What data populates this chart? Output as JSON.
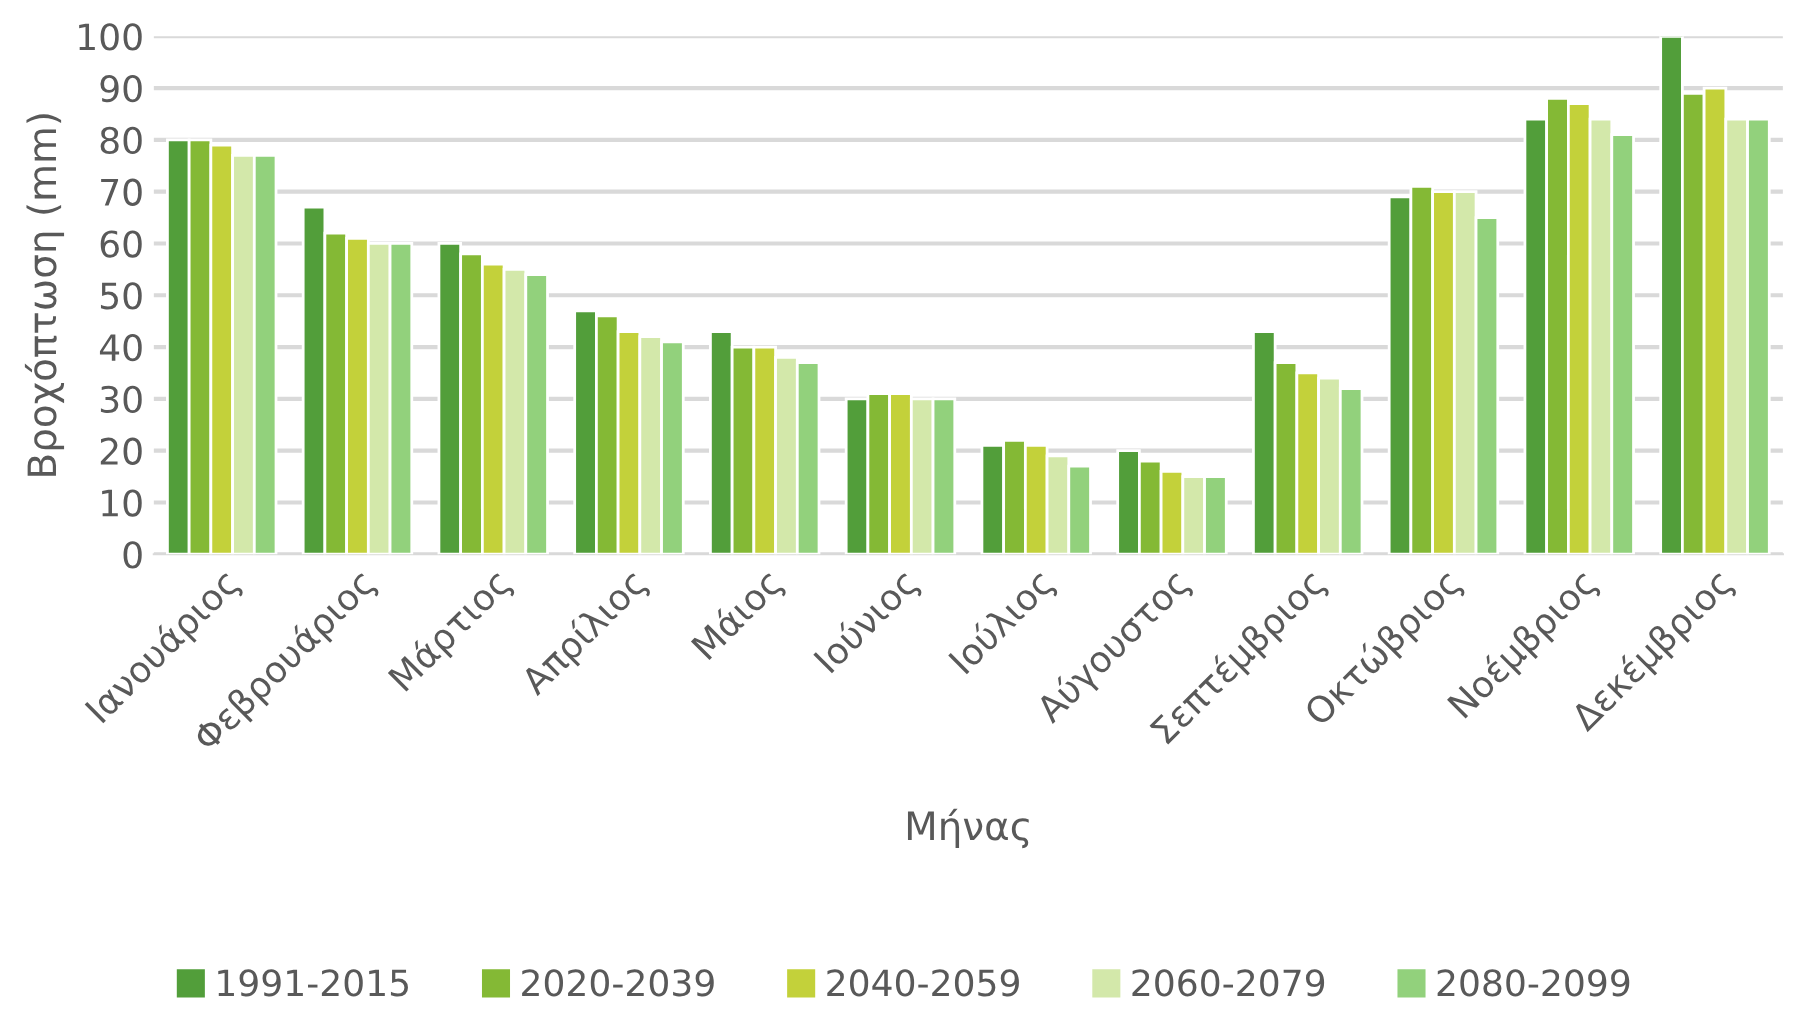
{
  "chart_data": {
    "type": "bar",
    "xlabel": "Μήνας",
    "ylabel": "Βροχόπτωση (mm)",
    "categories": [
      "Ιανουάριος",
      "Φεβρουάριος",
      "Μάρτιος",
      "Απρίλιος",
      "Μάιος",
      "Ιούνιος",
      "Ιούλιος",
      "Αύγουστος",
      "Σεπτέμβριος",
      "Οκτώβριος",
      "Νοέμβριος",
      "Δεκέμβριος"
    ],
    "series": [
      {
        "name": "1991-2015",
        "color": "#529e3a",
        "values": [
          80,
          67,
          60,
          47,
          43,
          30,
          21,
          20,
          43,
          69,
          84,
          100
        ]
      },
      {
        "name": "2020-2039",
        "color": "#84b935",
        "values": [
          80,
          62,
          58,
          46,
          40,
          31,
          22,
          18,
          37,
          71,
          88,
          89
        ]
      },
      {
        "name": "2040-2059",
        "color": "#c3d13a",
        "values": [
          79,
          61,
          56,
          43,
          40,
          31,
          21,
          16,
          35,
          70,
          87,
          90
        ]
      },
      {
        "name": "2060-2079",
        "color": "#d3e8aa",
        "values": [
          77,
          60,
          55,
          42,
          38,
          30,
          19,
          15,
          34,
          70,
          84,
          84
        ]
      },
      {
        "name": "2080-2099",
        "color": "#92d17c",
        "values": [
          77,
          60,
          54,
          41,
          37,
          30,
          17,
          15,
          32,
          65,
          81,
          84
        ]
      }
    ],
    "ylim": [
      0,
      100
    ],
    "yticks": [
      0,
      10,
      20,
      30,
      40,
      50,
      60,
      70,
      80,
      90,
      100
    ],
    "grid": "y",
    "legend": "bottom"
  }
}
